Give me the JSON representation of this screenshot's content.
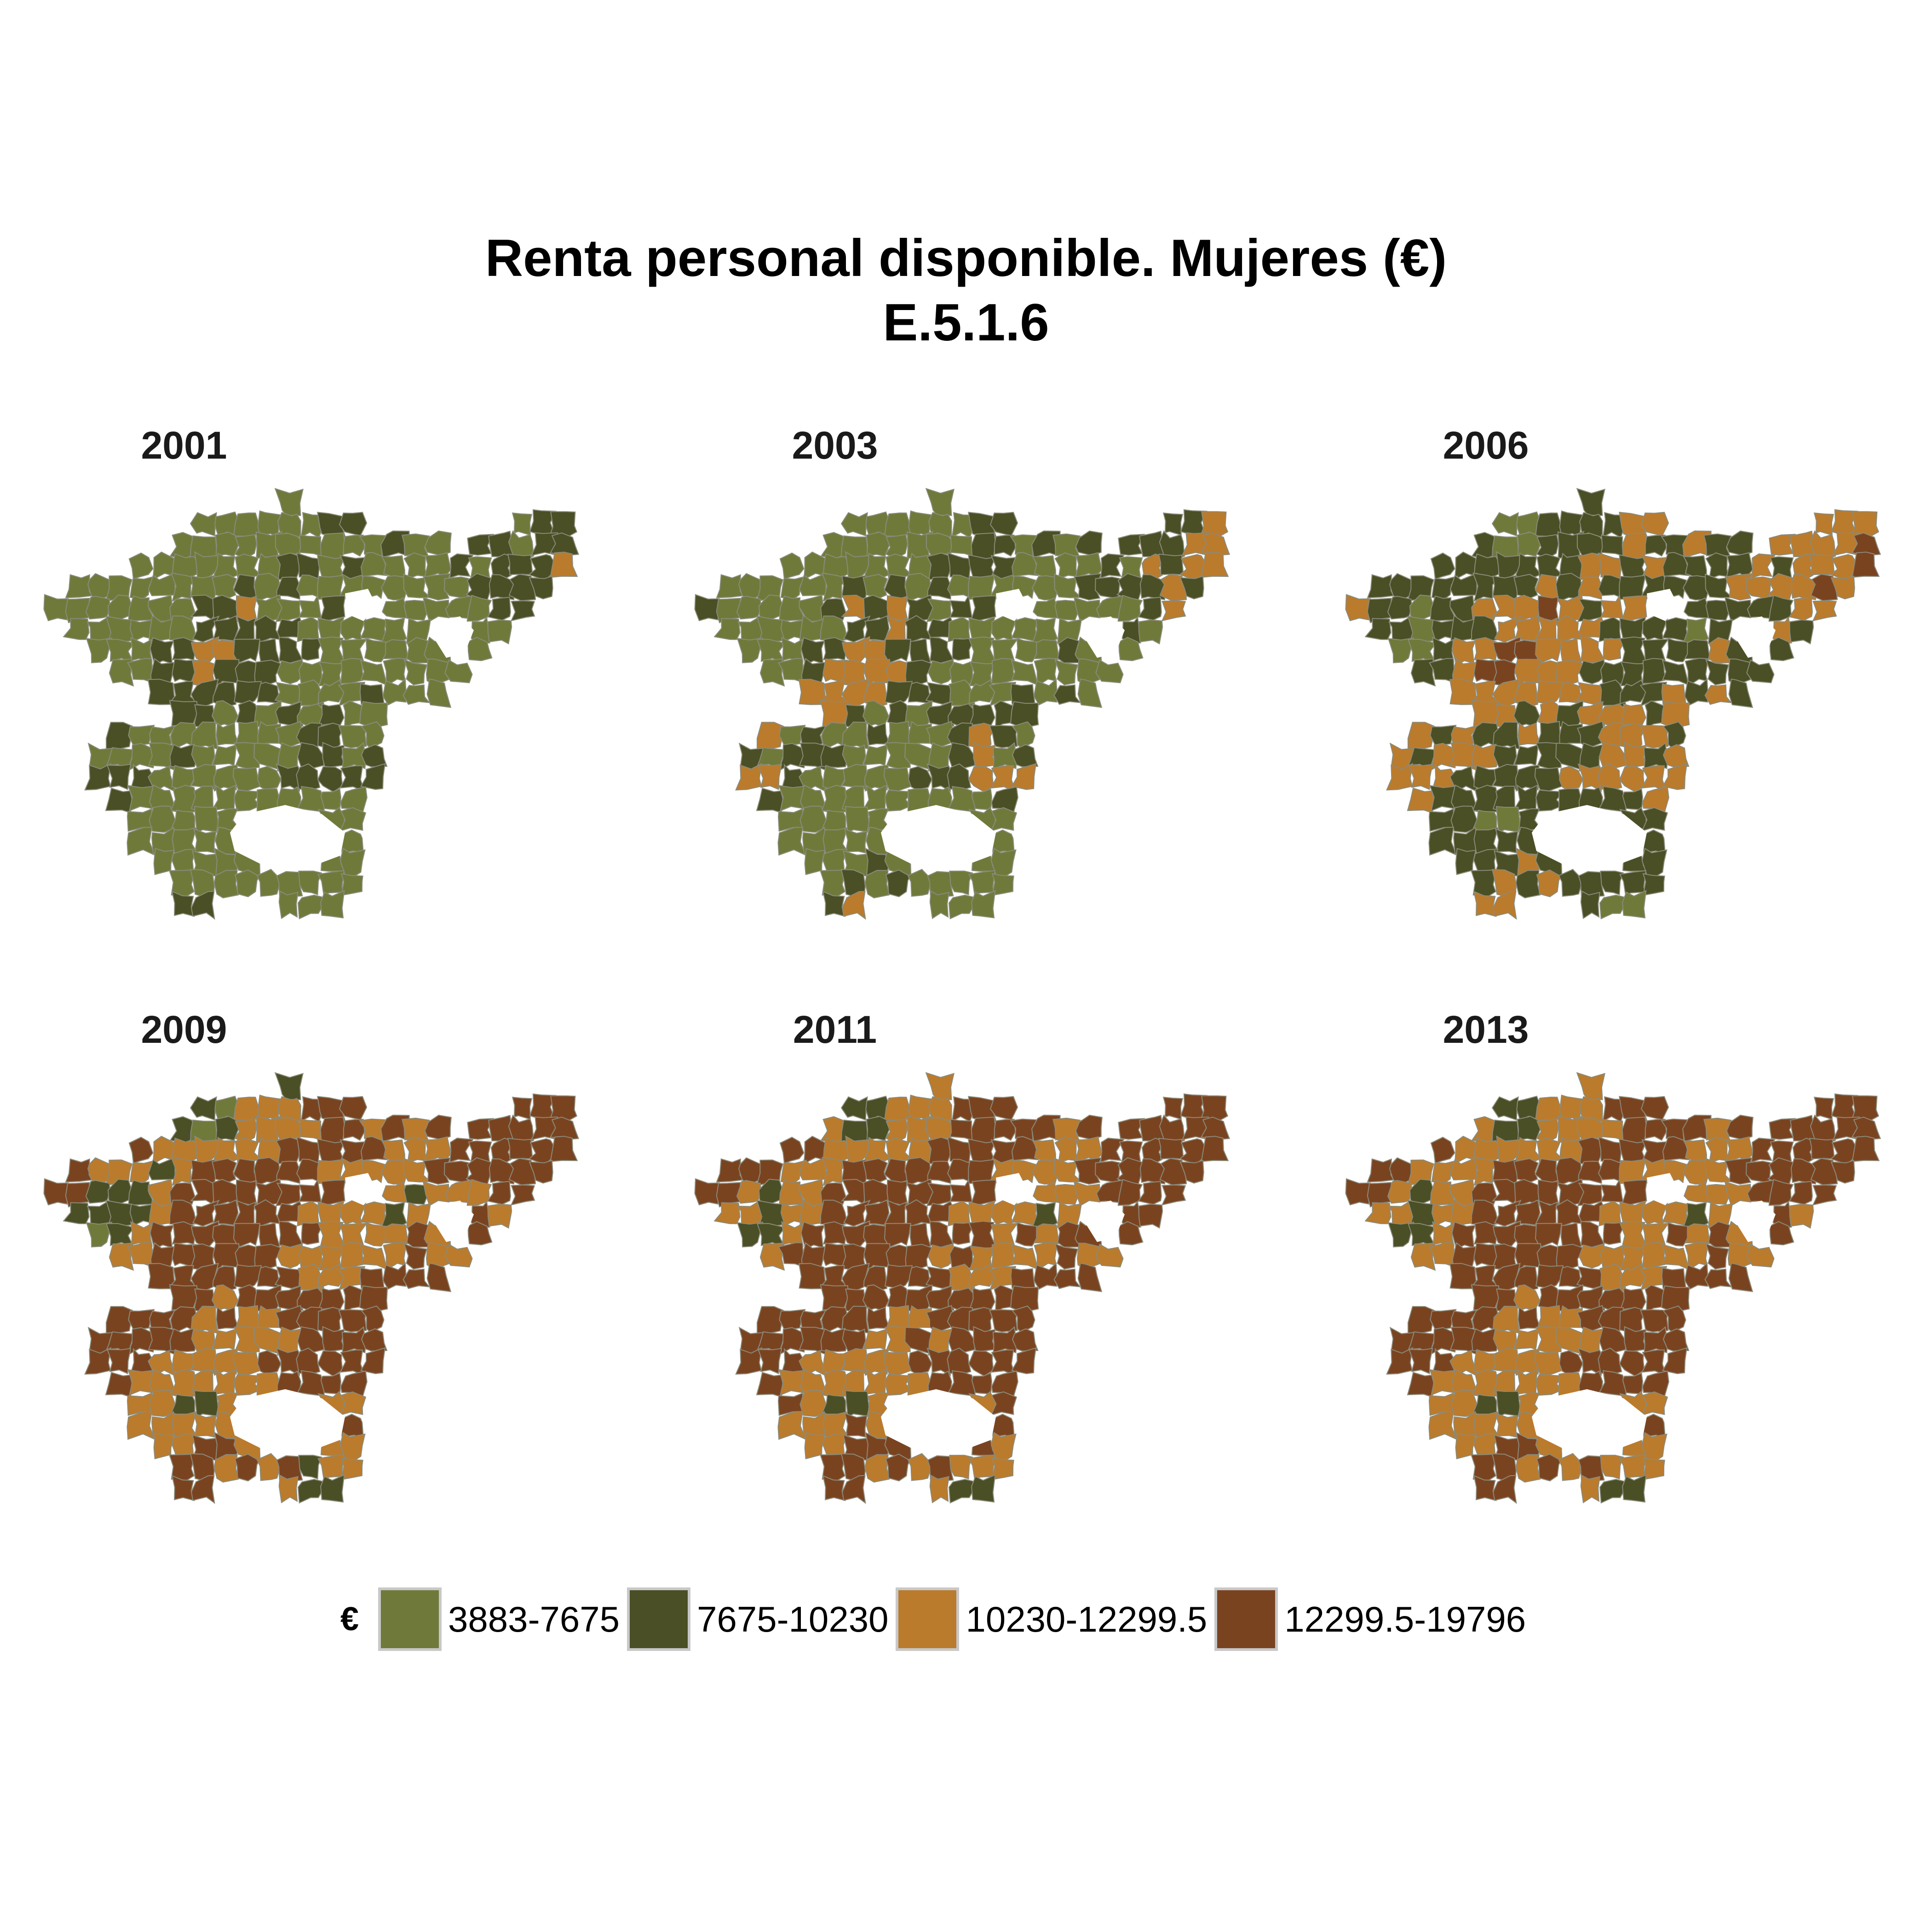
{
  "title": {
    "line1": "Renta personal disponible. Mujeres (€)",
    "line2": "E.5.1.6"
  },
  "legend": {
    "title": "€",
    "items": [
      {
        "label": "3883-7675",
        "color": "#6f7a3a"
      },
      {
        "label": "7675-10230",
        "color": "#4a4f25"
      },
      {
        "label": "10230-12299.5",
        "color": "#bb7b2c"
      },
      {
        "label": "12299.5-19796",
        "color": "#7a4320"
      }
    ]
  },
  "colors": {
    "border": "#8a8a7a"
  },
  "panels": [
    {
      "year": "2001",
      "class_shares": [
        0.7,
        0.28,
        0.02,
        0.0
      ]
    },
    {
      "year": "2003",
      "class_shares": [
        0.58,
        0.3,
        0.12,
        0.0
      ]
    },
    {
      "year": "2006",
      "class_shares": [
        0.05,
        0.55,
        0.37,
        0.03
      ]
    },
    {
      "year": "2009",
      "class_shares": [
        0.01,
        0.08,
        0.38,
        0.53
      ]
    },
    {
      "year": "2011",
      "class_shares": [
        0.0,
        0.05,
        0.33,
        0.62
      ]
    },
    {
      "year": "2013",
      "class_shares": [
        0.0,
        0.05,
        0.4,
        0.55
      ]
    }
  ]
}
